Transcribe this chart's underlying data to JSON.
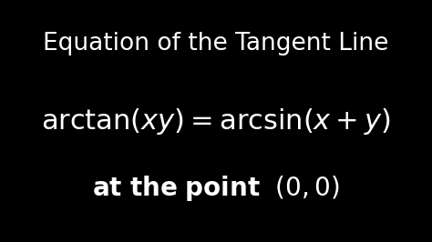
{
  "background_color": "#000000",
  "title_text": "Equation of the Tangent Line",
  "title_color": "#ffffff",
  "title_fontsize": 19,
  "title_fontweight": "normal",
  "equation_text": "$\\arctan(xy) = \\arcsin(x + y)$",
  "equation_color": "#ffffff",
  "equation_fontsize": 22,
  "point_color": "#ffffff",
  "point_fontsize": 20,
  "fig_width": 4.74,
  "fig_height": 2.66,
  "dpi": 100
}
